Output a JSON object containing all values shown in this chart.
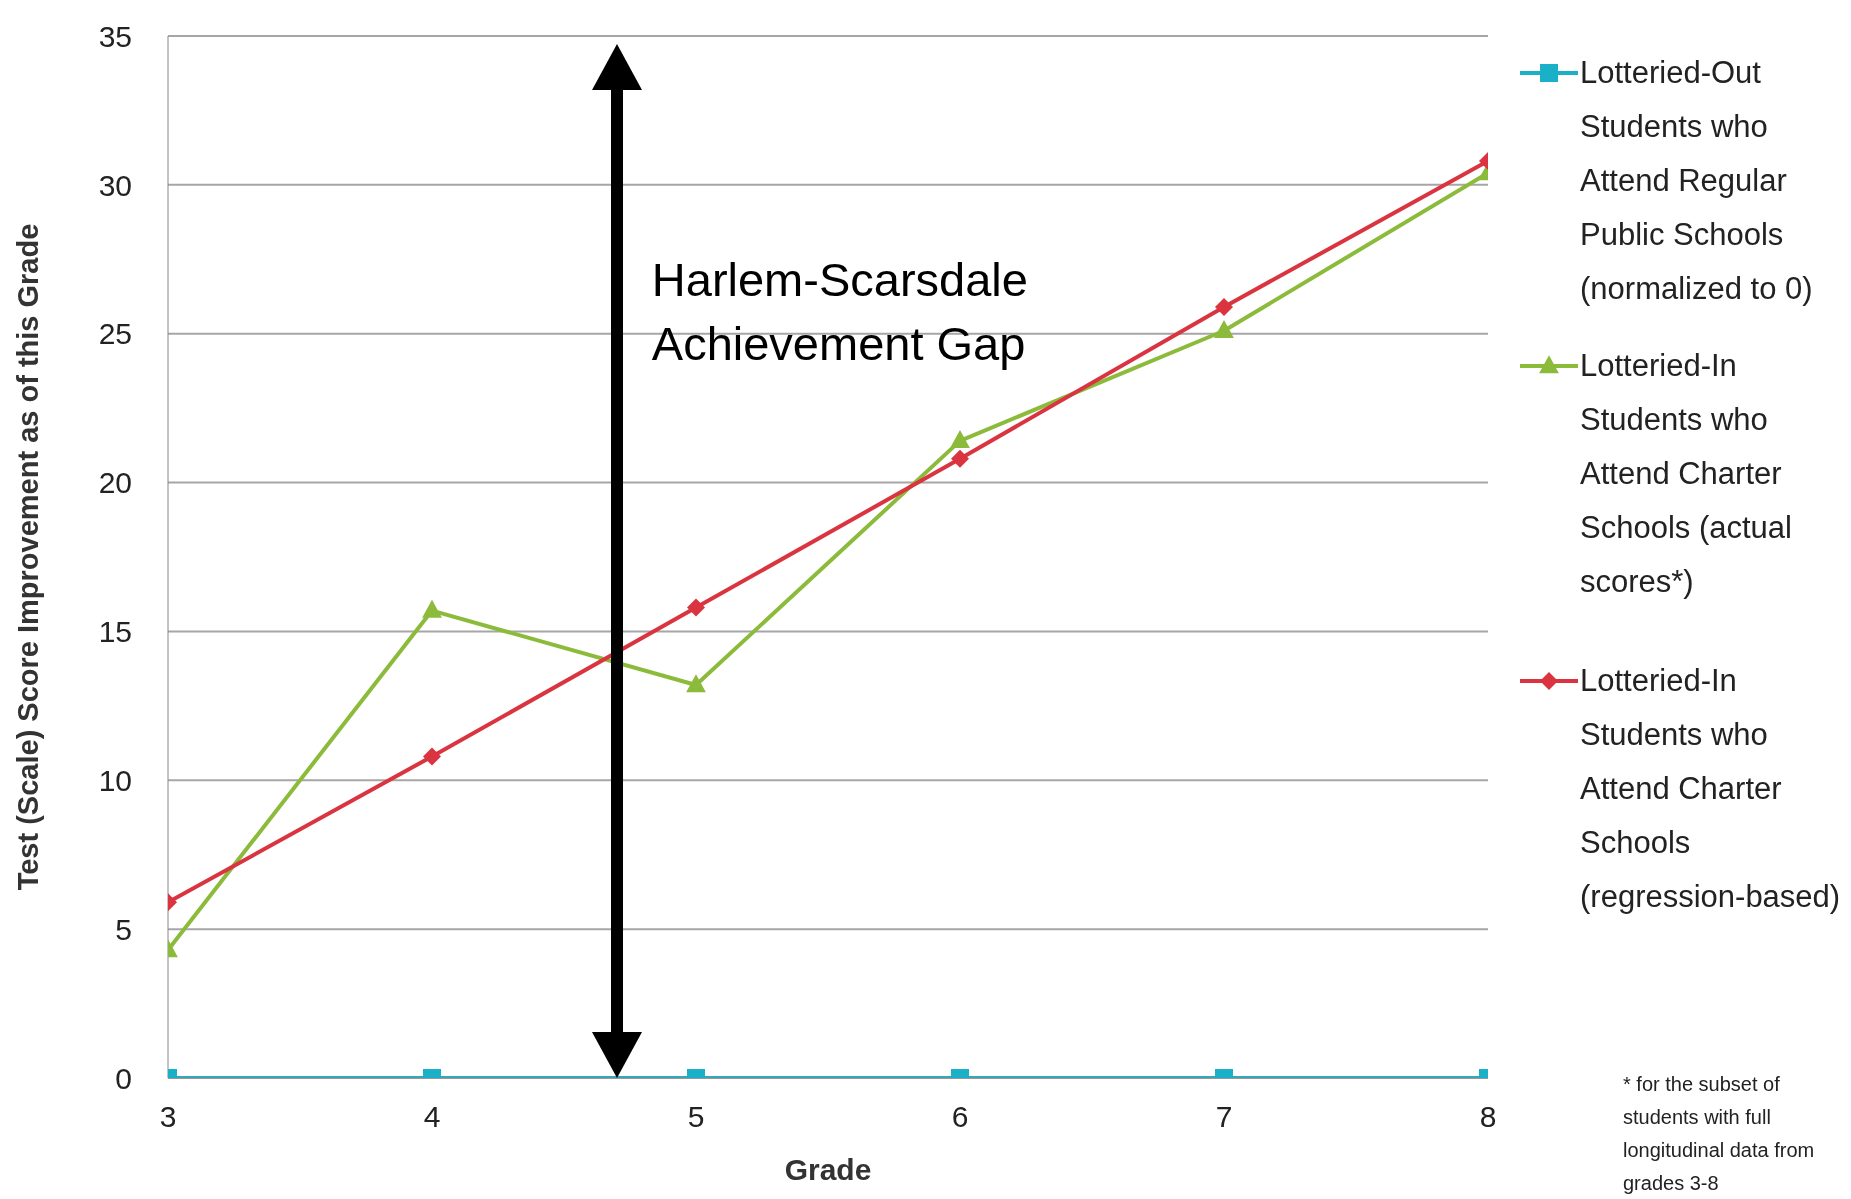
{
  "chart_data": {
    "type": "line",
    "xlabel": "Grade",
    "ylabel": "Test (Scale) Score Improvement as of this Grade",
    "x": [
      3,
      4,
      5,
      6,
      7,
      8
    ],
    "xlim": [
      3,
      8
    ],
    "xticks": [
      3,
      4,
      5,
      6,
      7,
      8
    ],
    "ylim": [
      0,
      35
    ],
    "yticks": [
      0,
      5,
      10,
      15,
      20,
      25,
      30,
      35
    ],
    "grid": "y",
    "legend": "right",
    "series": [
      {
        "name": "Lotteried-Out Students who Attend Regular Public Schools (normalized to 0)",
        "color": "#1ab0c8",
        "marker": "square",
        "values": [
          0,
          0,
          0,
          0,
          0,
          0
        ]
      },
      {
        "name": "Lotteried-In Students who Attend Charter Schools (actual scores*)",
        "color": "#8cbb3c",
        "marker": "triangle",
        "values": [
          4.3,
          15.7,
          13.2,
          21.4,
          25.1,
          30.4
        ]
      },
      {
        "name": "Lotteried-In Students who Attend Charter Schools (regression-based)",
        "color": "#d9343f",
        "marker": "diamond",
        "values": [
          5.9,
          10.8,
          15.8,
          20.8,
          25.9,
          30.8
        ]
      }
    ],
    "annotations": [
      "Harlem-Scarsdale Achievement Gap",
      "* for the subset of students with full longitudinal data from grades 3-8"
    ]
  }
}
